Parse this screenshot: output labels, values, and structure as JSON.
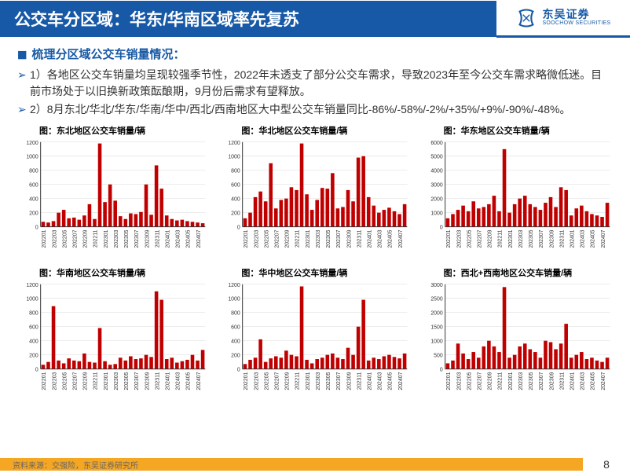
{
  "header": {
    "title": "公交车分区域：华东/华南区域率先复苏",
    "logo_cn": "东吴证券",
    "logo_en": "SOOCHOW SECURITIES"
  },
  "section_head": "梳理分区域公交车销量情况：",
  "bullets": [
    "1）各地区公交车销量均呈现较强季节性，2022年末透支了部分公交车需求，导致2023年至今公交车需求略微低迷。目前市场处于以旧换新政策酝酿期，9月份后需求有望释放。",
    "2）8月东北/华北/华东/华南/华中/西北/西南地区大中型公交车销量同比-86%/-58%/-2%/+35%/+9%/-90%/-48%。"
  ],
  "charts": [
    {
      "title": "图：东北地区公交车销量/辆",
      "type": "bar",
      "ylim": [
        0,
        1200
      ],
      "ytick_step": 200,
      "bar_color": "#c00000",
      "axis_color": "#333333",
      "grid_color": "#d9d9d9",
      "bg_color": "#ffffff",
      "title_fontsize": 11,
      "axis_fontsize": 7,
      "categories": [
        "202201",
        "202203",
        "202205",
        "202207",
        "202209",
        "202211",
        "202301",
        "202303",
        "202305",
        "202307",
        "202309",
        "202311",
        "202401",
        "202403",
        "202405",
        "202407"
      ],
      "values_full": [
        70,
        60,
        80,
        200,
        240,
        120,
        130,
        100,
        160,
        320,
        110,
        1180,
        350,
        600,
        370,
        150,
        110,
        190,
        180,
        210,
        600,
        170,
        870,
        540,
        160,
        110,
        90,
        100,
        80,
        70,
        60,
        50
      ]
    },
    {
      "title": "图：华北地区公交车销量/辆",
      "type": "bar",
      "ylim": [
        0,
        1200
      ],
      "ytick_step": 200,
      "bar_color": "#c00000",
      "axis_color": "#333333",
      "grid_color": "#d9d9d9",
      "bg_color": "#ffffff",
      "title_fontsize": 11,
      "axis_fontsize": 7,
      "categories": [
        "202201",
        "202203",
        "202205",
        "202207",
        "202209",
        "202211",
        "202301",
        "202303",
        "202305",
        "202307",
        "202309",
        "202311",
        "202401",
        "202403",
        "202405",
        "202407"
      ],
      "values_full": [
        120,
        200,
        420,
        500,
        360,
        900,
        260,
        380,
        400,
        560,
        520,
        1180,
        460,
        240,
        380,
        550,
        540,
        760,
        260,
        280,
        520,
        360,
        980,
        1000,
        420,
        300,
        200,
        240,
        270,
        220,
        180,
        320
      ]
    },
    {
      "title": "图：华东地区公交车销量/辆",
      "type": "bar",
      "ylim": [
        0,
        6000
      ],
      "ytick_step": 1000,
      "bar_color": "#c00000",
      "axis_color": "#333333",
      "grid_color": "#d9d9d9",
      "bg_color": "#ffffff",
      "title_fontsize": 11,
      "axis_fontsize": 7,
      "categories": [
        "202201",
        "202203",
        "202205",
        "202207",
        "202209",
        "202211",
        "202301",
        "202303",
        "202305",
        "202307",
        "202309",
        "202311",
        "202401",
        "202403",
        "202405",
        "202407"
      ],
      "values_full": [
        600,
        900,
        1200,
        1500,
        1100,
        1800,
        1300,
        1400,
        1600,
        2200,
        1100,
        5500,
        1000,
        1600,
        2000,
        2200,
        1600,
        1400,
        1200,
        1700,
        2100,
        1400,
        2800,
        2600,
        800,
        1300,
        1500,
        1100,
        900,
        800,
        700,
        1700
      ]
    },
    {
      "title": "图：华南地区公交车销量/辆",
      "type": "bar",
      "ylim": [
        0,
        1200
      ],
      "ytick_step": 200,
      "bar_color": "#c00000",
      "axis_color": "#333333",
      "grid_color": "#d9d9d9",
      "bg_color": "#ffffff",
      "title_fontsize": 11,
      "axis_fontsize": 7,
      "categories": [
        "202201",
        "202203",
        "202205",
        "202207",
        "202209",
        "202211",
        "202301",
        "202303",
        "202305",
        "202307",
        "202309",
        "202311",
        "202401",
        "202403",
        "202405",
        "202407"
      ],
      "values_full": [
        60,
        100,
        890,
        120,
        80,
        150,
        120,
        110,
        220,
        100,
        90,
        580,
        110,
        60,
        70,
        160,
        120,
        180,
        140,
        150,
        200,
        170,
        1100,
        980,
        140,
        160,
        90,
        110,
        130,
        200,
        120,
        270
      ]
    },
    {
      "title": "图：华中地区公交车销量/辆",
      "type": "bar",
      "ylim": [
        0,
        1200
      ],
      "ytick_step": 200,
      "bar_color": "#c00000",
      "axis_color": "#333333",
      "grid_color": "#d9d9d9",
      "bg_color": "#ffffff",
      "title_fontsize": 11,
      "axis_fontsize": 7,
      "categories": [
        "202201",
        "202203",
        "202205",
        "202207",
        "202209",
        "202211",
        "202301",
        "202303",
        "202305",
        "202307",
        "202309",
        "202311",
        "202401",
        "202403",
        "202405",
        "202407"
      ],
      "values_full": [
        70,
        130,
        160,
        420,
        100,
        150,
        180,
        160,
        260,
        200,
        180,
        1170,
        130,
        80,
        140,
        160,
        200,
        220,
        160,
        140,
        300,
        200,
        600,
        980,
        120,
        160,
        140,
        180,
        200,
        170,
        150,
        220
      ]
    },
    {
      "title": "图：西北+西南地区公交车销量/辆",
      "type": "bar",
      "ylim": [
        0,
        3000
      ],
      "ytick_step": 500,
      "bar_color": "#c00000",
      "axis_color": "#333333",
      "grid_color": "#d9d9d9",
      "bg_color": "#ffffff",
      "title_fontsize": 11,
      "axis_fontsize": 7,
      "categories": [
        "202201",
        "202203",
        "202205",
        "202207",
        "202209",
        "202211",
        "202301",
        "202303",
        "202305",
        "202307",
        "202309",
        "202311",
        "202401",
        "202403",
        "202405",
        "202407"
      ],
      "values_full": [
        200,
        300,
        900,
        550,
        350,
        600,
        400,
        800,
        1000,
        800,
        600,
        2900,
        400,
        500,
        800,
        900,
        700,
        600,
        400,
        1000,
        950,
        700,
        900,
        1600,
        400,
        500,
        600,
        350,
        400,
        300,
        250,
        400
      ]
    }
  ],
  "footer": {
    "source": "资料来源：交强险，东吴证券研究所",
    "page": "8"
  }
}
